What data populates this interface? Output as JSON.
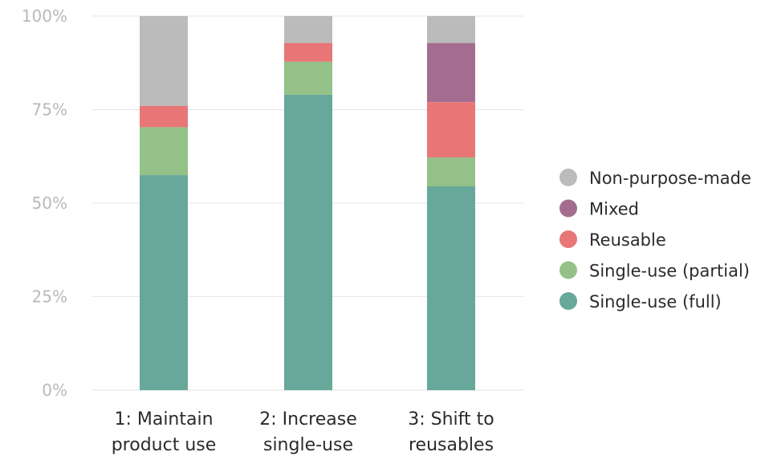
{
  "chart_data": {
    "type": "bar",
    "stacked": true,
    "categories": [
      [
        "1: Maintain",
        "product use"
      ],
      [
        "2: Increase",
        "single-use"
      ],
      [
        "3: Shift to",
        "reusables"
      ]
    ],
    "series": [
      {
        "name": "Single-use (full)",
        "color": "#68a89a",
        "values": [
          57.5,
          79.0,
          54.5
        ]
      },
      {
        "name": "Single-use (partial)",
        "color": "#93c188",
        "values": [
          12.8,
          8.8,
          7.7
        ]
      },
      {
        "name": "Reusable",
        "color": "#e87676",
        "values": [
          5.7,
          5.0,
          14.8
        ]
      },
      {
        "name": "Mixed",
        "color": "#a46d8f",
        "values": [
          0,
          0,
          15.8
        ]
      },
      {
        "name": "Non-purpose-made",
        "color": "#bbbbbb",
        "values": [
          24.0,
          7.2,
          7.2
        ]
      }
    ],
    "yticks": [
      "0%",
      "25%",
      "50%",
      "75%",
      "100%"
    ],
    "ylim": [
      0,
      100
    ],
    "grid": true,
    "legend_position": "right",
    "legend_order": [
      "Non-purpose-made",
      "Mixed",
      "Reusable",
      "Single-use (partial)",
      "Single-use (full)"
    ]
  }
}
